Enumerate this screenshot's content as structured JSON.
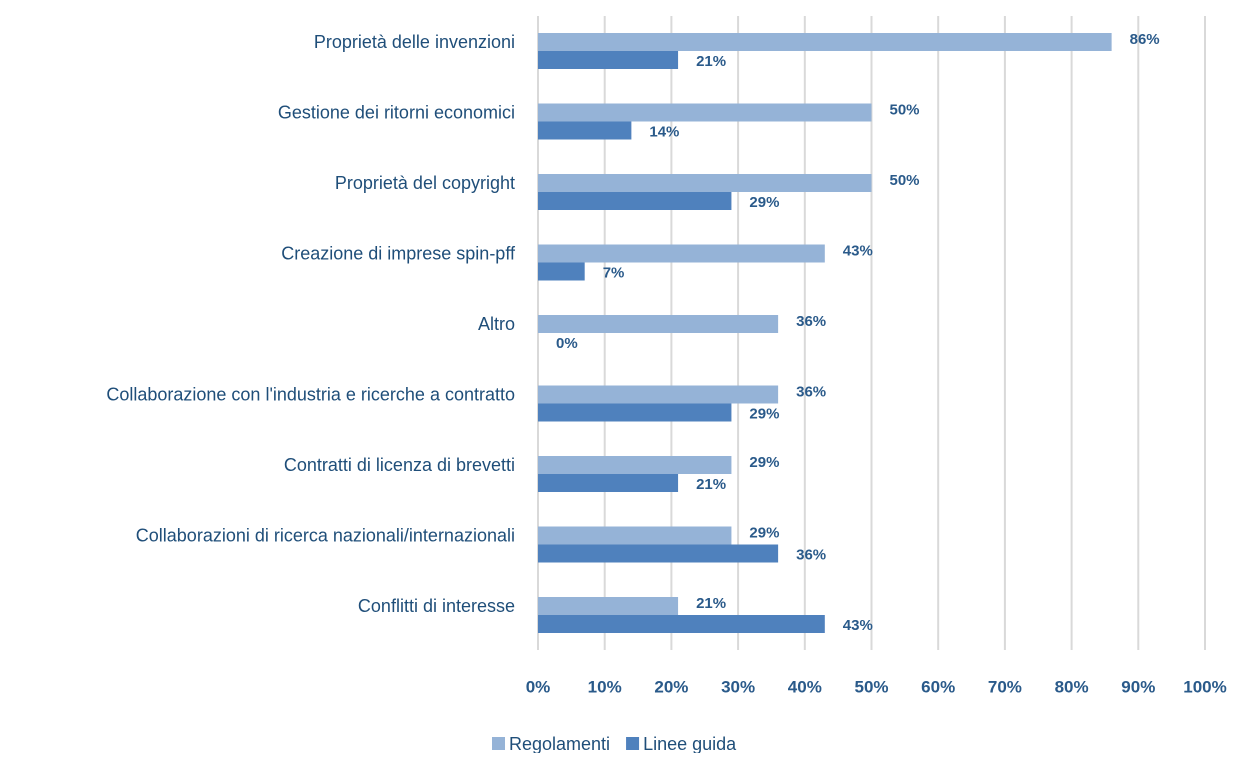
{
  "chart_data": {
    "type": "bar",
    "orientation": "horizontal",
    "categories": [
      "Proprietà delle invenzioni",
      "Gestione dei ritorni economici",
      "Proprietà del copyright",
      "Creazione di imprese spin-pff",
      "Altro",
      "Collaborazione con l'industria e ricerche a contratto",
      "Contratti di licenza di brevetti",
      "Collaborazioni di ricerca nazionali/internazionali",
      "Conflitti di interesse"
    ],
    "series": [
      {
        "name": "Regolamenti",
        "color": "#95b3d7",
        "values": [
          86,
          50,
          50,
          43,
          36,
          36,
          29,
          29,
          21
        ],
        "value_labels": [
          "86%",
          "50%",
          "50%",
          "43%",
          "36%",
          "36%",
          "29%",
          "29%",
          "21%"
        ]
      },
      {
        "name": "Linee guida",
        "color": "#4f81bd",
        "values": [
          21,
          14,
          29,
          7,
          0,
          29,
          21,
          36,
          43
        ],
        "value_labels": [
          "21%",
          "14%",
          "29%",
          "7%",
          "0%",
          "29%",
          "21%",
          "36%",
          "43%"
        ]
      }
    ],
    "xlim": [
      0,
      100
    ],
    "xticks": [
      {
        "value": 0,
        "label": "0%"
      },
      {
        "value": 10,
        "label": "10%"
      },
      {
        "value": 20,
        "label": "20%"
      },
      {
        "value": 30,
        "label": "30%"
      },
      {
        "value": 40,
        "label": "40%"
      },
      {
        "value": 50,
        "label": "50%"
      },
      {
        "value": 60,
        "label": "60%"
      },
      {
        "value": 70,
        "label": "70%"
      },
      {
        "value": 80,
        "label": "80%"
      },
      {
        "value": 90,
        "label": "90%"
      },
      {
        "value": 100,
        "label": "100%"
      }
    ],
    "grid": true,
    "legend": "bottom"
  }
}
